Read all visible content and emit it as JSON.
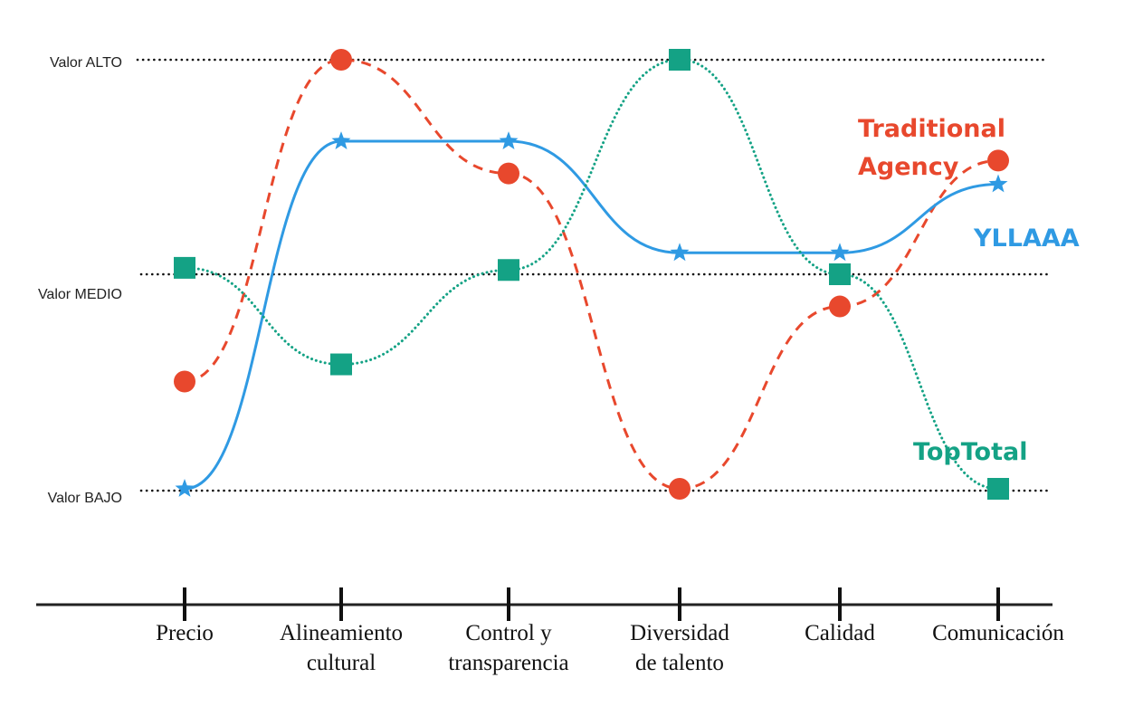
{
  "chart_data": {
    "type": "line",
    "categories": [
      [
        "Precio"
      ],
      [
        "Alineamiento",
        "cultural"
      ],
      [
        "Control y",
        "transparencia"
      ],
      [
        "Diversidad",
        "de talento"
      ],
      [
        "Calidad"
      ],
      [
        "Comunicación"
      ]
    ],
    "levels": [
      {
        "label": "Valor ALTO",
        "value": 3
      },
      {
        "label": "Valor MEDIO",
        "value": 2
      },
      {
        "label": "Valor BAJO",
        "value": 1
      }
    ],
    "ylim": [
      1,
      3
    ],
    "grid": "dotted reference lines at each level",
    "series": [
      {
        "name": [
          "Traditional",
          "Agency"
        ],
        "values": [
          1.5,
          3.0,
          2.47,
          1.0,
          1.85,
          2.53
        ],
        "color": "#e8482d",
        "marker": "circle",
        "line": "dashed"
      },
      {
        "name": [
          "YLLAAA"
        ],
        "values": [
          1.0,
          2.62,
          2.62,
          2.1,
          2.1,
          2.42
        ],
        "color": "#2f9ae3",
        "marker": "star",
        "line": "solid"
      },
      {
        "name": [
          "TopTotal"
        ],
        "values": [
          2.03,
          1.58,
          2.02,
          3.0,
          2.0,
          1.0
        ],
        "color": "#14a285",
        "marker": "square",
        "line": "dotted"
      }
    ]
  }
}
